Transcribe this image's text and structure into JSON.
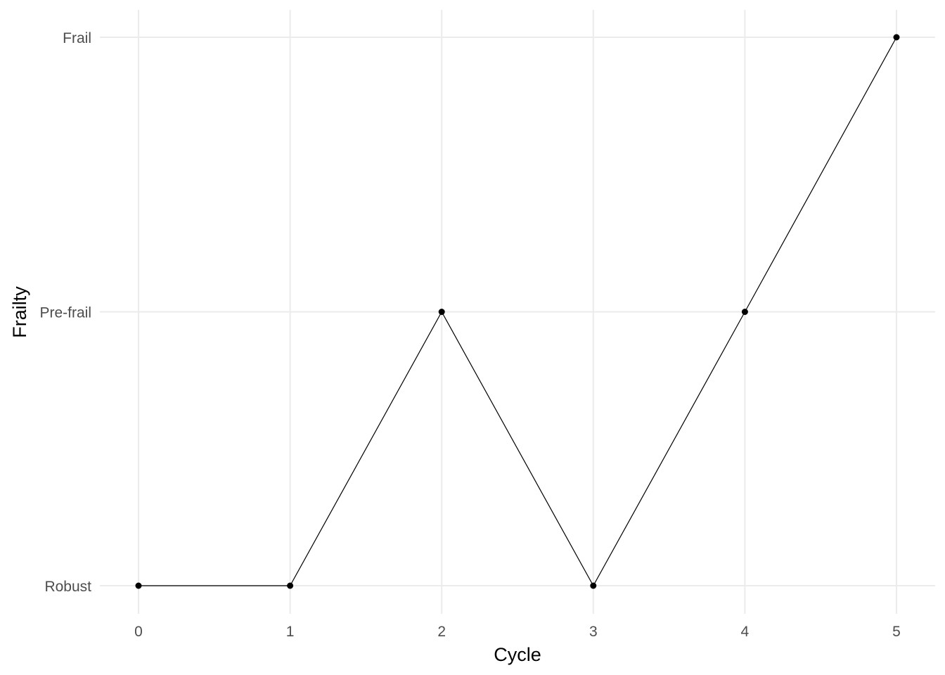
{
  "chart_data": {
    "type": "line",
    "xlabel": "Cycle",
    "ylabel": "Frailty",
    "x_ticks": [
      "0",
      "1",
      "2",
      "3",
      "4",
      "5"
    ],
    "y_categories": [
      "Robust",
      "Pre-frail",
      "Frail"
    ],
    "xlim": [
      0,
      5
    ],
    "x": [
      0,
      1,
      2,
      3,
      4,
      5
    ],
    "y": [
      "Robust",
      "Robust",
      "Pre-frail",
      "Robust",
      "Pre-frail",
      "Frail"
    ],
    "grid": true,
    "colors": {
      "line": "#000000",
      "point": "#000000",
      "grid": "#ebebeb",
      "tick_text": "#4d4d4d",
      "axis_title": "#000000"
    }
  }
}
